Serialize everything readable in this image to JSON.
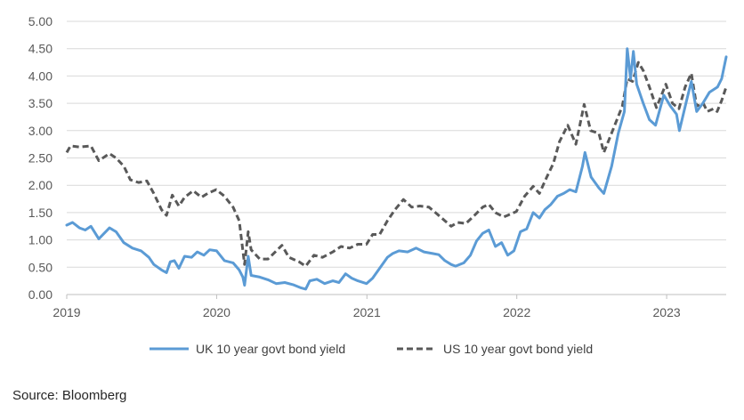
{
  "chart_data": {
    "type": "line",
    "title": "",
    "xlabel": "",
    "ylabel": "",
    "ylim": [
      0,
      5
    ],
    "xlim": [
      "2019-01-01",
      "2023-05-26"
    ],
    "yticks": [
      "0.00",
      "0.50",
      "1.00",
      "1.50",
      "2.00",
      "2.50",
      "3.00",
      "3.50",
      "4.00",
      "4.50",
      "5.00"
    ],
    "xticks": [
      "2019",
      "2020",
      "2021",
      "2022",
      "2023"
    ],
    "grid": "horizontal",
    "legend_position": "bottom",
    "series": [
      {
        "name": "UK 10 year govt bond yield",
        "color": "#5B9BD5",
        "style": "solid",
        "points": [
          [
            "2019-01-01",
            1.27
          ],
          [
            "2019-01-15",
            1.32
          ],
          [
            "2019-02-01",
            1.22
          ],
          [
            "2019-02-15",
            1.18
          ],
          [
            "2019-03-01",
            1.25
          ],
          [
            "2019-03-20",
            1.02
          ],
          [
            "2019-04-15",
            1.22
          ],
          [
            "2019-05-01",
            1.15
          ],
          [
            "2019-05-20",
            0.95
          ],
          [
            "2019-06-10",
            0.85
          ],
          [
            "2019-07-01",
            0.8
          ],
          [
            "2019-07-20",
            0.68
          ],
          [
            "2019-08-01",
            0.55
          ],
          [
            "2019-08-20",
            0.45
          ],
          [
            "2019-09-01",
            0.4
          ],
          [
            "2019-09-10",
            0.6
          ],
          [
            "2019-09-20",
            0.62
          ],
          [
            "2019-10-01",
            0.48
          ],
          [
            "2019-10-15",
            0.7
          ],
          [
            "2019-11-01",
            0.68
          ],
          [
            "2019-11-15",
            0.78
          ],
          [
            "2019-12-01",
            0.72
          ],
          [
            "2019-12-15",
            0.82
          ],
          [
            "2020-01-01",
            0.8
          ],
          [
            "2020-01-20",
            0.62
          ],
          [
            "2020-02-10",
            0.58
          ],
          [
            "2020-02-25",
            0.45
          ],
          [
            "2020-03-05",
            0.32
          ],
          [
            "2020-03-09",
            0.17
          ],
          [
            "2020-03-18",
            0.7
          ],
          [
            "2020-03-25",
            0.35
          ],
          [
            "2020-04-15",
            0.32
          ],
          [
            "2020-05-05",
            0.27
          ],
          [
            "2020-05-25",
            0.2
          ],
          [
            "2020-06-15",
            0.22
          ],
          [
            "2020-07-05",
            0.18
          ],
          [
            "2020-07-25",
            0.12
          ],
          [
            "2020-08-05",
            0.1
          ],
          [
            "2020-08-15",
            0.25
          ],
          [
            "2020-09-01",
            0.28
          ],
          [
            "2020-09-20",
            0.2
          ],
          [
            "2020-10-10",
            0.25
          ],
          [
            "2020-10-25",
            0.22
          ],
          [
            "2020-11-10",
            0.38
          ],
          [
            "2020-11-25",
            0.3
          ],
          [
            "2020-12-10",
            0.25
          ],
          [
            "2020-12-31",
            0.2
          ],
          [
            "2021-01-15",
            0.3
          ],
          [
            "2021-02-01",
            0.48
          ],
          [
            "2021-02-20",
            0.68
          ],
          [
            "2021-03-05",
            0.75
          ],
          [
            "2021-03-20",
            0.8
          ],
          [
            "2021-04-10",
            0.78
          ],
          [
            "2021-05-01",
            0.85
          ],
          [
            "2021-05-20",
            0.78
          ],
          [
            "2021-06-10",
            0.75
          ],
          [
            "2021-06-25",
            0.73
          ],
          [
            "2021-07-10",
            0.62
          ],
          [
            "2021-07-25",
            0.55
          ],
          [
            "2021-08-05",
            0.52
          ],
          [
            "2021-08-25",
            0.58
          ],
          [
            "2021-09-10",
            0.72
          ],
          [
            "2021-09-25",
            0.98
          ],
          [
            "2021-10-10",
            1.12
          ],
          [
            "2021-10-25",
            1.18
          ],
          [
            "2021-11-10",
            0.88
          ],
          [
            "2021-11-25",
            0.95
          ],
          [
            "2021-12-10",
            0.72
          ],
          [
            "2021-12-25",
            0.8
          ],
          [
            "2022-01-10",
            1.15
          ],
          [
            "2022-01-25",
            1.2
          ],
          [
            "2022-02-10",
            1.5
          ],
          [
            "2022-02-25",
            1.4
          ],
          [
            "2022-03-10",
            1.55
          ],
          [
            "2022-03-25",
            1.65
          ],
          [
            "2022-04-10",
            1.8
          ],
          [
            "2022-04-25",
            1.85
          ],
          [
            "2022-05-10",
            1.92
          ],
          [
            "2022-05-25",
            1.88
          ],
          [
            "2022-06-10",
            2.35
          ],
          [
            "2022-06-16",
            2.6
          ],
          [
            "2022-07-01",
            2.15
          ],
          [
            "2022-07-20",
            1.95
          ],
          [
            "2022-08-01",
            1.85
          ],
          [
            "2022-08-20",
            2.35
          ],
          [
            "2022-09-05",
            2.95
          ],
          [
            "2022-09-20",
            3.35
          ],
          [
            "2022-09-27",
            4.5
          ],
          [
            "2022-10-05",
            3.95
          ],
          [
            "2022-10-12",
            4.45
          ],
          [
            "2022-10-20",
            3.85
          ],
          [
            "2022-11-05",
            3.5
          ],
          [
            "2022-11-20",
            3.2
          ],
          [
            "2022-12-05",
            3.1
          ],
          [
            "2022-12-25",
            3.65
          ],
          [
            "2023-01-10",
            3.45
          ],
          [
            "2023-01-25",
            3.3
          ],
          [
            "2023-02-01",
            3.0
          ],
          [
            "2023-02-20",
            3.6
          ],
          [
            "2023-03-02",
            3.9
          ],
          [
            "2023-03-15",
            3.35
          ],
          [
            "2023-03-30",
            3.5
          ],
          [
            "2023-04-15",
            3.7
          ],
          [
            "2023-04-25",
            3.75
          ],
          [
            "2023-05-05",
            3.8
          ],
          [
            "2023-05-15",
            3.95
          ],
          [
            "2023-05-26",
            4.35
          ]
        ]
      },
      {
        "name": "US 10 year govt bond yield",
        "color": "#595959",
        "style": "dashed",
        "points": [
          [
            "2019-01-01",
            2.6
          ],
          [
            "2019-01-10",
            2.72
          ],
          [
            "2019-02-01",
            2.7
          ],
          [
            "2019-03-01",
            2.72
          ],
          [
            "2019-03-20",
            2.45
          ],
          [
            "2019-04-15",
            2.58
          ],
          [
            "2019-05-01",
            2.5
          ],
          [
            "2019-05-20",
            2.35
          ],
          [
            "2019-06-05",
            2.1
          ],
          [
            "2019-06-25",
            2.05
          ],
          [
            "2019-07-15",
            2.08
          ],
          [
            "2019-08-01",
            1.85
          ],
          [
            "2019-08-20",
            1.55
          ],
          [
            "2019-09-01",
            1.45
          ],
          [
            "2019-09-15",
            1.82
          ],
          [
            "2019-10-01",
            1.62
          ],
          [
            "2019-10-15",
            1.78
          ],
          [
            "2019-11-05",
            1.9
          ],
          [
            "2019-11-25",
            1.78
          ],
          [
            "2019-12-10",
            1.85
          ],
          [
            "2019-12-31",
            1.92
          ],
          [
            "2020-01-20",
            1.8
          ],
          [
            "2020-02-10",
            1.6
          ],
          [
            "2020-02-25",
            1.35
          ],
          [
            "2020-03-09",
            0.55
          ],
          [
            "2020-03-18",
            1.15
          ],
          [
            "2020-03-25",
            0.82
          ],
          [
            "2020-04-15",
            0.65
          ],
          [
            "2020-05-05",
            0.65
          ],
          [
            "2020-06-08",
            0.9
          ],
          [
            "2020-06-25",
            0.68
          ],
          [
            "2020-07-20",
            0.6
          ],
          [
            "2020-08-05",
            0.52
          ],
          [
            "2020-08-25",
            0.72
          ],
          [
            "2020-09-15",
            0.68
          ],
          [
            "2020-10-10",
            0.78
          ],
          [
            "2020-10-30",
            0.88
          ],
          [
            "2020-11-20",
            0.85
          ],
          [
            "2020-12-10",
            0.92
          ],
          [
            "2020-12-31",
            0.92
          ],
          [
            "2021-01-15",
            1.1
          ],
          [
            "2021-02-01",
            1.1
          ],
          [
            "2021-02-20",
            1.35
          ],
          [
            "2021-03-10",
            1.55
          ],
          [
            "2021-03-31",
            1.74
          ],
          [
            "2021-04-20",
            1.6
          ],
          [
            "2021-05-10",
            1.62
          ],
          [
            "2021-06-01",
            1.6
          ],
          [
            "2021-06-20",
            1.48
          ],
          [
            "2021-07-10",
            1.35
          ],
          [
            "2021-07-25",
            1.25
          ],
          [
            "2021-08-10",
            1.32
          ],
          [
            "2021-08-30",
            1.3
          ],
          [
            "2021-09-20",
            1.45
          ],
          [
            "2021-10-10",
            1.6
          ],
          [
            "2021-10-25",
            1.65
          ],
          [
            "2021-11-10",
            1.5
          ],
          [
            "2021-11-30",
            1.42
          ],
          [
            "2021-12-10",
            1.45
          ],
          [
            "2021-12-31",
            1.52
          ],
          [
            "2022-01-20",
            1.8
          ],
          [
            "2022-02-10",
            1.98
          ],
          [
            "2022-02-25",
            1.85
          ],
          [
            "2022-03-15",
            2.15
          ],
          [
            "2022-03-31",
            2.4
          ],
          [
            "2022-04-15",
            2.8
          ],
          [
            "2022-05-05",
            3.1
          ],
          [
            "2022-05-25",
            2.75
          ],
          [
            "2022-06-14",
            3.48
          ],
          [
            "2022-06-30",
            3.0
          ],
          [
            "2022-07-20",
            2.95
          ],
          [
            "2022-08-01",
            2.6
          ],
          [
            "2022-08-25",
            3.05
          ],
          [
            "2022-09-15",
            3.45
          ],
          [
            "2022-09-27",
            3.95
          ],
          [
            "2022-10-10",
            3.9
          ],
          [
            "2022-10-24",
            4.25
          ],
          [
            "2022-11-05",
            4.1
          ],
          [
            "2022-11-20",
            3.8
          ],
          [
            "2022-12-07",
            3.42
          ],
          [
            "2022-12-30",
            3.85
          ],
          [
            "2023-01-15",
            3.5
          ],
          [
            "2023-01-31",
            3.4
          ],
          [
            "2023-02-15",
            3.8
          ],
          [
            "2023-03-02",
            4.05
          ],
          [
            "2023-03-15",
            3.45
          ],
          [
            "2023-03-31",
            3.5
          ],
          [
            "2023-04-10",
            3.35
          ],
          [
            "2023-04-25",
            3.4
          ],
          [
            "2023-05-04",
            3.35
          ],
          [
            "2023-05-15",
            3.55
          ],
          [
            "2023-05-26",
            3.8
          ]
        ]
      }
    ]
  },
  "source_note": "Source: Bloomberg"
}
